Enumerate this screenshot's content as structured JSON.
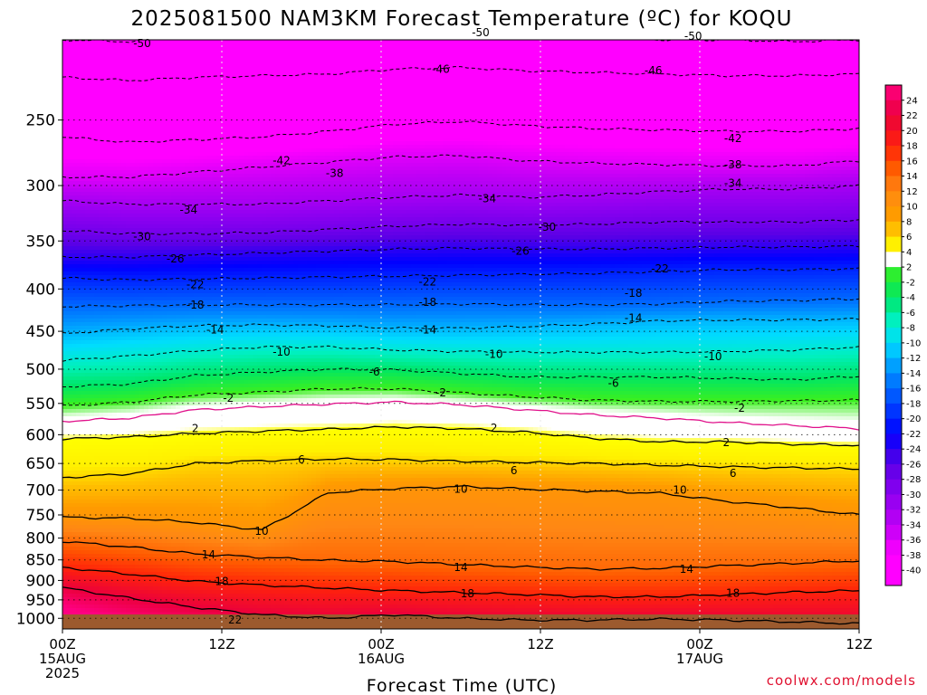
{
  "chart_data": {
    "type": "heatmap",
    "title": "2025081500 NAM3KM Forecast Temperature (ºC) for KOQU",
    "xlabel": "Forecast Time (UTC)",
    "ylabel": "",
    "x_ticks": [
      {
        "hour": 0,
        "lines": [
          "00Z",
          "15AUG",
          "2025"
        ]
      },
      {
        "hour": 12,
        "lines": [
          "12Z"
        ]
      },
      {
        "hour": 24,
        "lines": [
          "00Z",
          "16AUG"
        ]
      },
      {
        "hour": 36,
        "lines": [
          "12Z"
        ]
      },
      {
        "hour": 48,
        "lines": [
          "00Z",
          "17AUG"
        ]
      },
      {
        "hour": 60,
        "lines": [
          "12Z"
        ]
      }
    ],
    "xlim": [
      0,
      60
    ],
    "y_ticks": [
      250,
      300,
      350,
      400,
      450,
      500,
      550,
      600,
      650,
      700,
      750,
      800,
      850,
      900,
      950,
      1000
    ],
    "y_unit": "hPa",
    "y_scale": "log",
    "ylim": [
      1030,
      200
    ],
    "grid": true,
    "colorbar": {
      "placement": "right",
      "labels": [
        "24",
        "22",
        "20",
        "18",
        "16",
        "14",
        "12",
        "10",
        "8",
        "6",
        "4",
        "2",
        "-2",
        "-4",
        "-6",
        "-8",
        "-10",
        "-12",
        "-14",
        "-16",
        "-18",
        "-20",
        "-22",
        "-24",
        "-26",
        "-28",
        "-30",
        "-32",
        "-34",
        "-36",
        "-38",
        "-40"
      ]
    },
    "contours": [
      {
        "value": -50,
        "style": "dashed",
        "pressure": [
          200,
          201,
          198,
          197,
          198,
          199,
          198,
          199,
          199,
          200,
          200,
          201,
          200
        ]
      },
      {
        "value": -46,
        "style": "dashed",
        "pressure": [
          222,
          224,
          222,
          221,
          220,
          217,
          216,
          218,
          219,
          220,
          221,
          221,
          220
        ]
      },
      {
        "value": -42,
        "style": "dashed",
        "pressure": [
          262,
          266,
          264,
          262,
          258,
          253,
          251,
          254,
          256,
          257,
          258,
          258,
          256
        ]
      },
      {
        "value": -38,
        "style": "dashed",
        "pressure": [
          293,
          293,
          289,
          285,
          281,
          277,
          276,
          280,
          282,
          283,
          284,
          284,
          280
        ]
      },
      {
        "value": -34,
        "style": "dashed",
        "pressure": [
          313,
          316,
          316,
          316,
          313,
          310,
          308,
          310,
          308,
          305,
          303,
          303,
          300
        ]
      },
      {
        "value": -30,
        "style": "dashed",
        "pressure": [
          340,
          343,
          343,
          342,
          339,
          336,
          334,
          335,
          334,
          332,
          332,
          332,
          330
        ]
      },
      {
        "value": -26,
        "style": "dashed",
        "pressure": [
          366,
          366,
          364,
          362,
          360,
          358,
          357,
          358,
          358,
          357,
          356,
          356,
          355
        ]
      },
      {
        "value": -22,
        "style": "dashed",
        "pressure": [
          388,
          390,
          389,
          388,
          387,
          386,
          385,
          384,
          383,
          381,
          379,
          379,
          378
        ]
      },
      {
        "value": -18,
        "style": "dashed",
        "pressure": [
          420,
          419,
          418,
          418,
          418,
          418,
          417,
          418,
          418,
          417,
          414,
          413,
          411
        ]
      },
      {
        "value": -14,
        "style": "dashed",
        "pressure": [
          453,
          447,
          443,
          442,
          443,
          446,
          446,
          444,
          441,
          437,
          436,
          436,
          435
        ]
      },
      {
        "value": -10,
        "style": "dashed",
        "pressure": [
          488,
          482,
          475,
          470,
          470,
          474,
          476,
          477,
          477,
          477,
          476,
          474,
          470
        ]
      },
      {
        "value": -6,
        "style": "dashed",
        "pressure": [
          525,
          521,
          509,
          504,
          500,
          501,
          506,
          511,
          511,
          511,
          513,
          515,
          510
        ]
      },
      {
        "value": -2,
        "style": "dashed",
        "pressure": [
          554,
          548,
          537,
          533,
          528,
          528,
          534,
          540,
          545,
          547,
          547,
          546,
          545
        ]
      },
      {
        "value": 0,
        "style": "magenta",
        "pressure": [
          578,
          573,
          560,
          555,
          551,
          548,
          552,
          560,
          568,
          573,
          580,
          585,
          590
        ]
      },
      {
        "value": 2,
        "style": "solid",
        "pressure": [
          607,
          604,
          598,
          594,
          591,
          587,
          590,
          596,
          606,
          612,
          612,
          616,
          618
        ]
      },
      {
        "value": 6,
        "style": "solid",
        "pressure": [
          676,
          669,
          650,
          645,
          642,
          643,
          646,
          648,
          650,
          653,
          656,
          658,
          660
        ]
      },
      {
        "value": 10,
        "style": "solid",
        "pressure": [
          755,
          757,
          766,
          782,
          705,
          697,
          693,
          698,
          702,
          706,
          722,
          735,
          750
        ]
      },
      {
        "value": 14,
        "style": "solid",
        "pressure": [
          807,
          820,
          836,
          844,
          851,
          854,
          861,
          867,
          872,
          870,
          864,
          858,
          852
        ]
      },
      {
        "value": 18,
        "style": "solid",
        "pressure": [
          868,
          884,
          902,
          912,
          919,
          926,
          931,
          936,
          942,
          942,
          936,
          930,
          926
        ]
      },
      {
        "value": 22,
        "style": "solid",
        "pressure": [
          918,
          945,
          970,
          990,
          1000,
          990,
          1000,
          1005,
          1005,
          1002,
          1005,
          1010,
          1015
        ]
      }
    ],
    "contour_labels": [
      {
        "text": "-50",
        "hour": 6.0,
        "pressure": 202
      },
      {
        "text": "-50",
        "hour": 31.5,
        "pressure": 196
      },
      {
        "text": "-50",
        "hour": 47.5,
        "pressure": 198
      },
      {
        "text": "-46",
        "hour": 28.5,
        "pressure": 217
      },
      {
        "text": "-46",
        "hour": 44.5,
        "pressure": 218
      },
      {
        "text": "-42",
        "hour": 16.5,
        "pressure": 280
      },
      {
        "text": "-42",
        "hour": 50.5,
        "pressure": 263
      },
      {
        "text": "-38",
        "hour": 20.5,
        "pressure": 290
      },
      {
        "text": "-38",
        "hour": 50.5,
        "pressure": 283
      },
      {
        "text": "-34",
        "hour": 9.5,
        "pressure": 321
      },
      {
        "text": "-34",
        "hour": 32.0,
        "pressure": 311
      },
      {
        "text": "-34",
        "hour": 50.5,
        "pressure": 298
      },
      {
        "text": "-30",
        "hour": 6.0,
        "pressure": 346
      },
      {
        "text": "-30",
        "hour": 36.5,
        "pressure": 337
      },
      {
        "text": "-26",
        "hour": 8.5,
        "pressure": 368
      },
      {
        "text": "-26",
        "hour": 34.5,
        "pressure": 360
      },
      {
        "text": "-22",
        "hour": 10.0,
        "pressure": 395
      },
      {
        "text": "-22",
        "hour": 27.5,
        "pressure": 392
      },
      {
        "text": "-22",
        "hour": 45.0,
        "pressure": 378
      },
      {
        "text": "-18",
        "hour": 10.0,
        "pressure": 418
      },
      {
        "text": "-18",
        "hour": 27.5,
        "pressure": 415
      },
      {
        "text": "-18",
        "hour": 43.0,
        "pressure": 405
      },
      {
        "text": "-14",
        "hour": 11.5,
        "pressure": 448
      },
      {
        "text": "-14",
        "hour": 27.5,
        "pressure": 448
      },
      {
        "text": "-14",
        "hour": 43.0,
        "pressure": 434
      },
      {
        "text": "-10",
        "hour": 16.5,
        "pressure": 477
      },
      {
        "text": "-10",
        "hour": 32.5,
        "pressure": 480
      },
      {
        "text": "-10",
        "hour": 49.0,
        "pressure": 483
      },
      {
        "text": "-6",
        "hour": 23.5,
        "pressure": 504
      },
      {
        "text": "-6",
        "hour": 41.5,
        "pressure": 520
      },
      {
        "text": "-2",
        "hour": 12.5,
        "pressure": 542
      },
      {
        "text": "-2",
        "hour": 28.5,
        "pressure": 534
      },
      {
        "text": "-2",
        "hour": 51.0,
        "pressure": 557
      },
      {
        "text": "2",
        "hour": 10.0,
        "pressure": 590
      },
      {
        "text": "2",
        "hour": 32.5,
        "pressure": 589
      },
      {
        "text": "2",
        "hour": 50.0,
        "pressure": 613
      },
      {
        "text": "6",
        "hour": 18.0,
        "pressure": 643
      },
      {
        "text": "6",
        "hour": 34.0,
        "pressure": 663
      },
      {
        "text": "6",
        "hour": 50.5,
        "pressure": 668
      },
      {
        "text": "10",
        "hour": 30.0,
        "pressure": 698
      },
      {
        "text": "10",
        "hour": 46.5,
        "pressure": 700
      },
      {
        "text": "10",
        "hour": 15.0,
        "pressure": 785
      },
      {
        "text": "14",
        "hour": 11.0,
        "pressure": 838
      },
      {
        "text": "14",
        "hour": 30.0,
        "pressure": 868
      },
      {
        "text": "14",
        "hour": 47.0,
        "pressure": 872
      },
      {
        "text": "18",
        "hour": 12.0,
        "pressure": 902
      },
      {
        "text": "18",
        "hour": 30.5,
        "pressure": 934
      },
      {
        "text": "18",
        "hour": 50.5,
        "pressure": 932
      },
      {
        "text": "22",
        "hour": 13.0,
        "pressure": 1005
      }
    ]
  },
  "credit": "coolwx.com/models"
}
